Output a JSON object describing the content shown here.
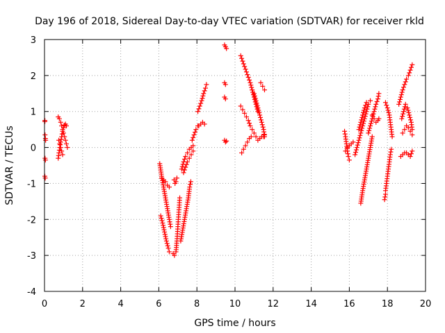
{
  "chart_data": {
    "type": "scatter",
    "title": "Day 196 of 2018, Sidereal Day-to-day VTEC variation (SDTVAR) for receiver rkld",
    "xlabel": "GPS time / hours",
    "ylabel": "SDTVAR / TECUs",
    "xlim": [
      0,
      20
    ],
    "ylim": [
      -4,
      3
    ],
    "x_ticks": [
      0,
      2,
      4,
      6,
      8,
      10,
      12,
      14,
      16,
      18,
      20
    ],
    "y_ticks": [
      -4,
      -3,
      -2,
      -1,
      0,
      1,
      2,
      3
    ],
    "grid": true,
    "marker": "plus",
    "color": "#ff0000",
    "series": [
      {
        "segments": [
          [
            [
              0.02,
              0.75
            ],
            [
              0.02,
              0.72
            ]
          ],
          [
            [
              0.03,
              0.35
            ],
            [
              0.05,
              0.25
            ],
            [
              0.06,
              0.2
            ]
          ],
          [
            [
              0.03,
              -0.3
            ],
            [
              0.05,
              -0.35
            ]
          ],
          [
            [
              0.02,
              -0.8
            ],
            [
              0.04,
              -0.85
            ]
          ],
          [
            [
              0.72,
              0.85
            ],
            [
              0.78,
              0.8
            ],
            [
              0.85,
              0.7
            ],
            [
              0.9,
              0.6
            ],
            [
              0.95,
              0.5
            ],
            [
              1.0,
              0.4
            ],
            [
              1.05,
              0.3
            ],
            [
              1.1,
              0.2
            ],
            [
              1.15,
              0.1
            ],
            [
              1.2,
              0.0
            ]
          ],
          [
            [
              0.72,
              -0.3
            ],
            [
              0.76,
              -0.15
            ],
            [
              0.8,
              0.0
            ],
            [
              0.85,
              0.15
            ],
            [
              0.9,
              0.3
            ],
            [
              0.95,
              0.45
            ],
            [
              1.0,
              0.55
            ],
            [
              1.05,
              0.62
            ],
            [
              1.1,
              0.65
            ],
            [
              1.15,
              0.6
            ]
          ],
          [
            [
              0.75,
              0.2
            ],
            [
              0.8,
              0.1
            ],
            [
              0.85,
              0.0
            ],
            [
              0.9,
              -0.1
            ],
            [
              0.95,
              -0.2
            ]
          ],
          [
            [
              6.05,
              -0.45
            ],
            [
              6.15,
              -0.8
            ],
            [
              6.25,
              -1.1
            ],
            [
              6.35,
              -1.4
            ],
            [
              6.45,
              -1.7
            ],
            [
              6.55,
              -2.0
            ],
            [
              6.62,
              -2.2
            ]
          ],
          [
            [
              6.1,
              -1.9
            ],
            [
              6.2,
              -2.1
            ],
            [
              6.3,
              -2.35
            ],
            [
              6.4,
              -2.6
            ],
            [
              6.5,
              -2.8
            ],
            [
              6.55,
              -2.9
            ]
          ],
          [
            [
              6.15,
              -0.85
            ],
            [
              6.25,
              -0.9
            ],
            [
              6.35,
              -0.95
            ],
            [
              6.45,
              -1.05
            ],
            [
              6.55,
              -1.1
            ]
          ],
          [
            [
              6.75,
              -2.95
            ],
            [
              6.82,
              -3.0
            ],
            [
              6.9,
              -2.9
            ],
            [
              6.95,
              -2.6
            ],
            [
              7.0,
              -2.2
            ],
            [
              7.05,
              -1.8
            ],
            [
              7.1,
              -1.4
            ]
          ],
          [
            [
              6.8,
              -0.9
            ],
            [
              6.85,
              -1.0
            ],
            [
              6.9,
              -0.95
            ],
            [
              6.95,
              -0.85
            ]
          ],
          [
            [
              7.15,
              -2.6
            ],
            [
              7.25,
              -2.3
            ],
            [
              7.35,
              -2.0
            ],
            [
              7.45,
              -1.7
            ],
            [
              7.55,
              -1.4
            ],
            [
              7.62,
              -1.1
            ],
            [
              7.68,
              -0.95
            ]
          ],
          [
            [
              7.2,
              -0.6
            ],
            [
              7.3,
              -0.4
            ],
            [
              7.4,
              -0.25
            ],
            [
              7.5,
              -0.15
            ],
            [
              7.6,
              -0.05
            ],
            [
              7.7,
              0.0
            ],
            [
              7.8,
              0.05
            ]
          ],
          [
            [
              7.3,
              -0.7
            ],
            [
              7.4,
              -0.55
            ],
            [
              7.5,
              -0.4
            ],
            [
              7.6,
              -0.3
            ],
            [
              7.7,
              -0.2
            ],
            [
              7.8,
              -0.1
            ]
          ],
          [
            [
              7.75,
              0.2
            ],
            [
              7.85,
              0.35
            ],
            [
              7.95,
              0.5
            ],
            [
              8.05,
              0.6
            ]
          ],
          [
            [
              8.05,
              1.0
            ],
            [
              8.15,
              1.15
            ],
            [
              8.25,
              1.3
            ],
            [
              8.35,
              1.5
            ],
            [
              8.45,
              1.65
            ],
            [
              8.5,
              1.75
            ]
          ],
          [
            [
              8.1,
              0.6
            ],
            [
              8.2,
              0.65
            ],
            [
              8.3,
              0.7
            ],
            [
              8.4,
              0.65
            ]
          ],
          [
            [
              9.45,
              2.85
            ],
            [
              9.5,
              2.8
            ],
            [
              9.55,
              2.75
            ]
          ],
          [
            [
              9.45,
              1.8
            ],
            [
              9.5,
              1.75
            ]
          ],
          [
            [
              9.45,
              1.4
            ],
            [
              9.5,
              1.35
            ]
          ],
          [
            [
              9.45,
              0.2
            ],
            [
              9.5,
              0.15
            ],
            [
              9.55,
              0.18
            ]
          ],
          [
            [
              10.3,
              2.55
            ],
            [
              10.4,
              2.4
            ],
            [
              10.5,
              2.25
            ],
            [
              10.6,
              2.1
            ],
            [
              10.7,
              1.95
            ],
            [
              10.8,
              1.8
            ],
            [
              10.9,
              1.6
            ],
            [
              11.0,
              1.4
            ],
            [
              11.1,
              1.2
            ],
            [
              11.2,
              1.0
            ]
          ],
          [
            [
              10.3,
              1.15
            ],
            [
              10.4,
              1.05
            ],
            [
              10.5,
              0.95
            ],
            [
              10.6,
              0.85
            ],
            [
              10.7,
              0.75
            ],
            [
              10.8,
              0.6
            ],
            [
              10.9,
              0.5
            ],
            [
              11.0,
              0.4
            ],
            [
              11.1,
              0.3
            ]
          ],
          [
            [
              10.35,
              -0.15
            ],
            [
              10.45,
              -0.05
            ],
            [
              10.55,
              0.05
            ],
            [
              10.65,
              0.15
            ],
            [
              10.75,
              0.25
            ],
            [
              10.85,
              0.3
            ]
          ],
          [
            [
              10.9,
              1.6
            ],
            [
              11.0,
              1.5
            ],
            [
              11.1,
              1.3
            ],
            [
              11.2,
              1.1
            ],
            [
              11.3,
              0.9
            ],
            [
              11.4,
              0.7
            ],
            [
              11.5,
              0.5
            ],
            [
              11.55,
              0.3
            ]
          ],
          [
            [
              11.2,
              0.2
            ],
            [
              11.3,
              0.25
            ],
            [
              11.4,
              0.3
            ],
            [
              11.5,
              0.3
            ],
            [
              11.55,
              0.35
            ]
          ],
          [
            [
              11.35,
              1.8
            ],
            [
              11.45,
              1.7
            ],
            [
              11.55,
              1.6
            ]
          ],
          [
            [
              15.75,
              0.45
            ],
            [
              15.8,
              0.3
            ],
            [
              15.85,
              0.1
            ],
            [
              15.9,
              -0.1
            ],
            [
              15.95,
              -0.25
            ],
            [
              16.0,
              -0.35
            ]
          ],
          [
            [
              15.8,
              -0.1
            ],
            [
              15.9,
              0.0
            ],
            [
              16.0,
              0.05
            ],
            [
              16.1,
              0.1
            ],
            [
              16.2,
              0.15
            ]
          ],
          [
            [
              16.3,
              -0.2
            ],
            [
              16.4,
              0.0
            ],
            [
              16.5,
              0.2
            ],
            [
              16.6,
              0.4
            ],
            [
              16.7,
              0.6
            ],
            [
              16.8,
              0.8
            ],
            [
              16.9,
              1.0
            ],
            [
              17.0,
              1.2
            ],
            [
              17.1,
              1.3
            ]
          ],
          [
            [
              16.6,
              -1.55
            ],
            [
              16.7,
              -1.2
            ],
            [
              16.8,
              -0.9
            ],
            [
              16.9,
              -0.6
            ],
            [
              17.0,
              -0.3
            ],
            [
              17.1,
              0.0
            ],
            [
              17.2,
              0.3
            ]
          ],
          [
            [
              16.5,
              0.5
            ],
            [
              16.6,
              0.7
            ],
            [
              16.7,
              0.9
            ],
            [
              16.8,
              1.1
            ],
            [
              16.9,
              1.25
            ]
          ],
          [
            [
              17.0,
              0.4
            ],
            [
              17.1,
              0.6
            ],
            [
              17.2,
              0.8
            ],
            [
              17.3,
              1.0
            ],
            [
              17.4,
              1.2
            ],
            [
              17.5,
              1.35
            ],
            [
              17.55,
              1.5
            ]
          ],
          [
            [
              17.2,
              0.9
            ],
            [
              17.3,
              0.8
            ],
            [
              17.4,
              0.7
            ],
            [
              17.5,
              0.75
            ],
            [
              17.55,
              0.8
            ]
          ],
          [
            [
              17.9,
              1.25
            ],
            [
              18.0,
              1.1
            ],
            [
              18.1,
              0.9
            ],
            [
              18.15,
              0.7
            ],
            [
              18.2,
              0.5
            ],
            [
              18.25,
              0.3
            ]
          ],
          [
            [
              17.9,
              -1.2
            ],
            [
              17.95,
              -1.0
            ],
            [
              18.0,
              -0.8
            ],
            [
              18.05,
              -0.6
            ],
            [
              18.1,
              -0.4
            ],
            [
              18.15,
              -0.2
            ],
            [
              18.2,
              -0.05
            ]
          ],
          [
            [
              17.85,
              -1.45
            ],
            [
              17.9,
              -1.3
            ]
          ],
          [
            [
              18.6,
              1.2
            ],
            [
              18.7,
              1.4
            ],
            [
              18.8,
              1.6
            ],
            [
              18.9,
              1.75
            ],
            [
              19.0,
              1.9
            ],
            [
              19.1,
              2.0
            ],
            [
              19.2,
              2.15
            ],
            [
              19.3,
              2.3
            ]
          ],
          [
            [
              18.7,
              -0.25
            ],
            [
              18.8,
              -0.2
            ],
            [
              18.9,
              -0.15
            ],
            [
              19.0,
              -0.15
            ],
            [
              19.1,
              -0.2
            ],
            [
              19.2,
              -0.25
            ],
            [
              19.3,
              -0.1
            ]
          ],
          [
            [
              18.75,
              0.8
            ],
            [
              18.85,
              1.0
            ],
            [
              18.95,
              1.2
            ],
            [
              19.05,
              1.1
            ],
            [
              19.15,
              0.9
            ],
            [
              19.25,
              0.7
            ],
            [
              19.3,
              0.5
            ]
          ],
          [
            [
              18.8,
              0.4
            ],
            [
              18.9,
              0.5
            ],
            [
              19.0,
              0.6
            ],
            [
              19.1,
              0.55
            ],
            [
              19.2,
              0.45
            ],
            [
              19.3,
              0.35
            ]
          ]
        ]
      }
    ]
  }
}
